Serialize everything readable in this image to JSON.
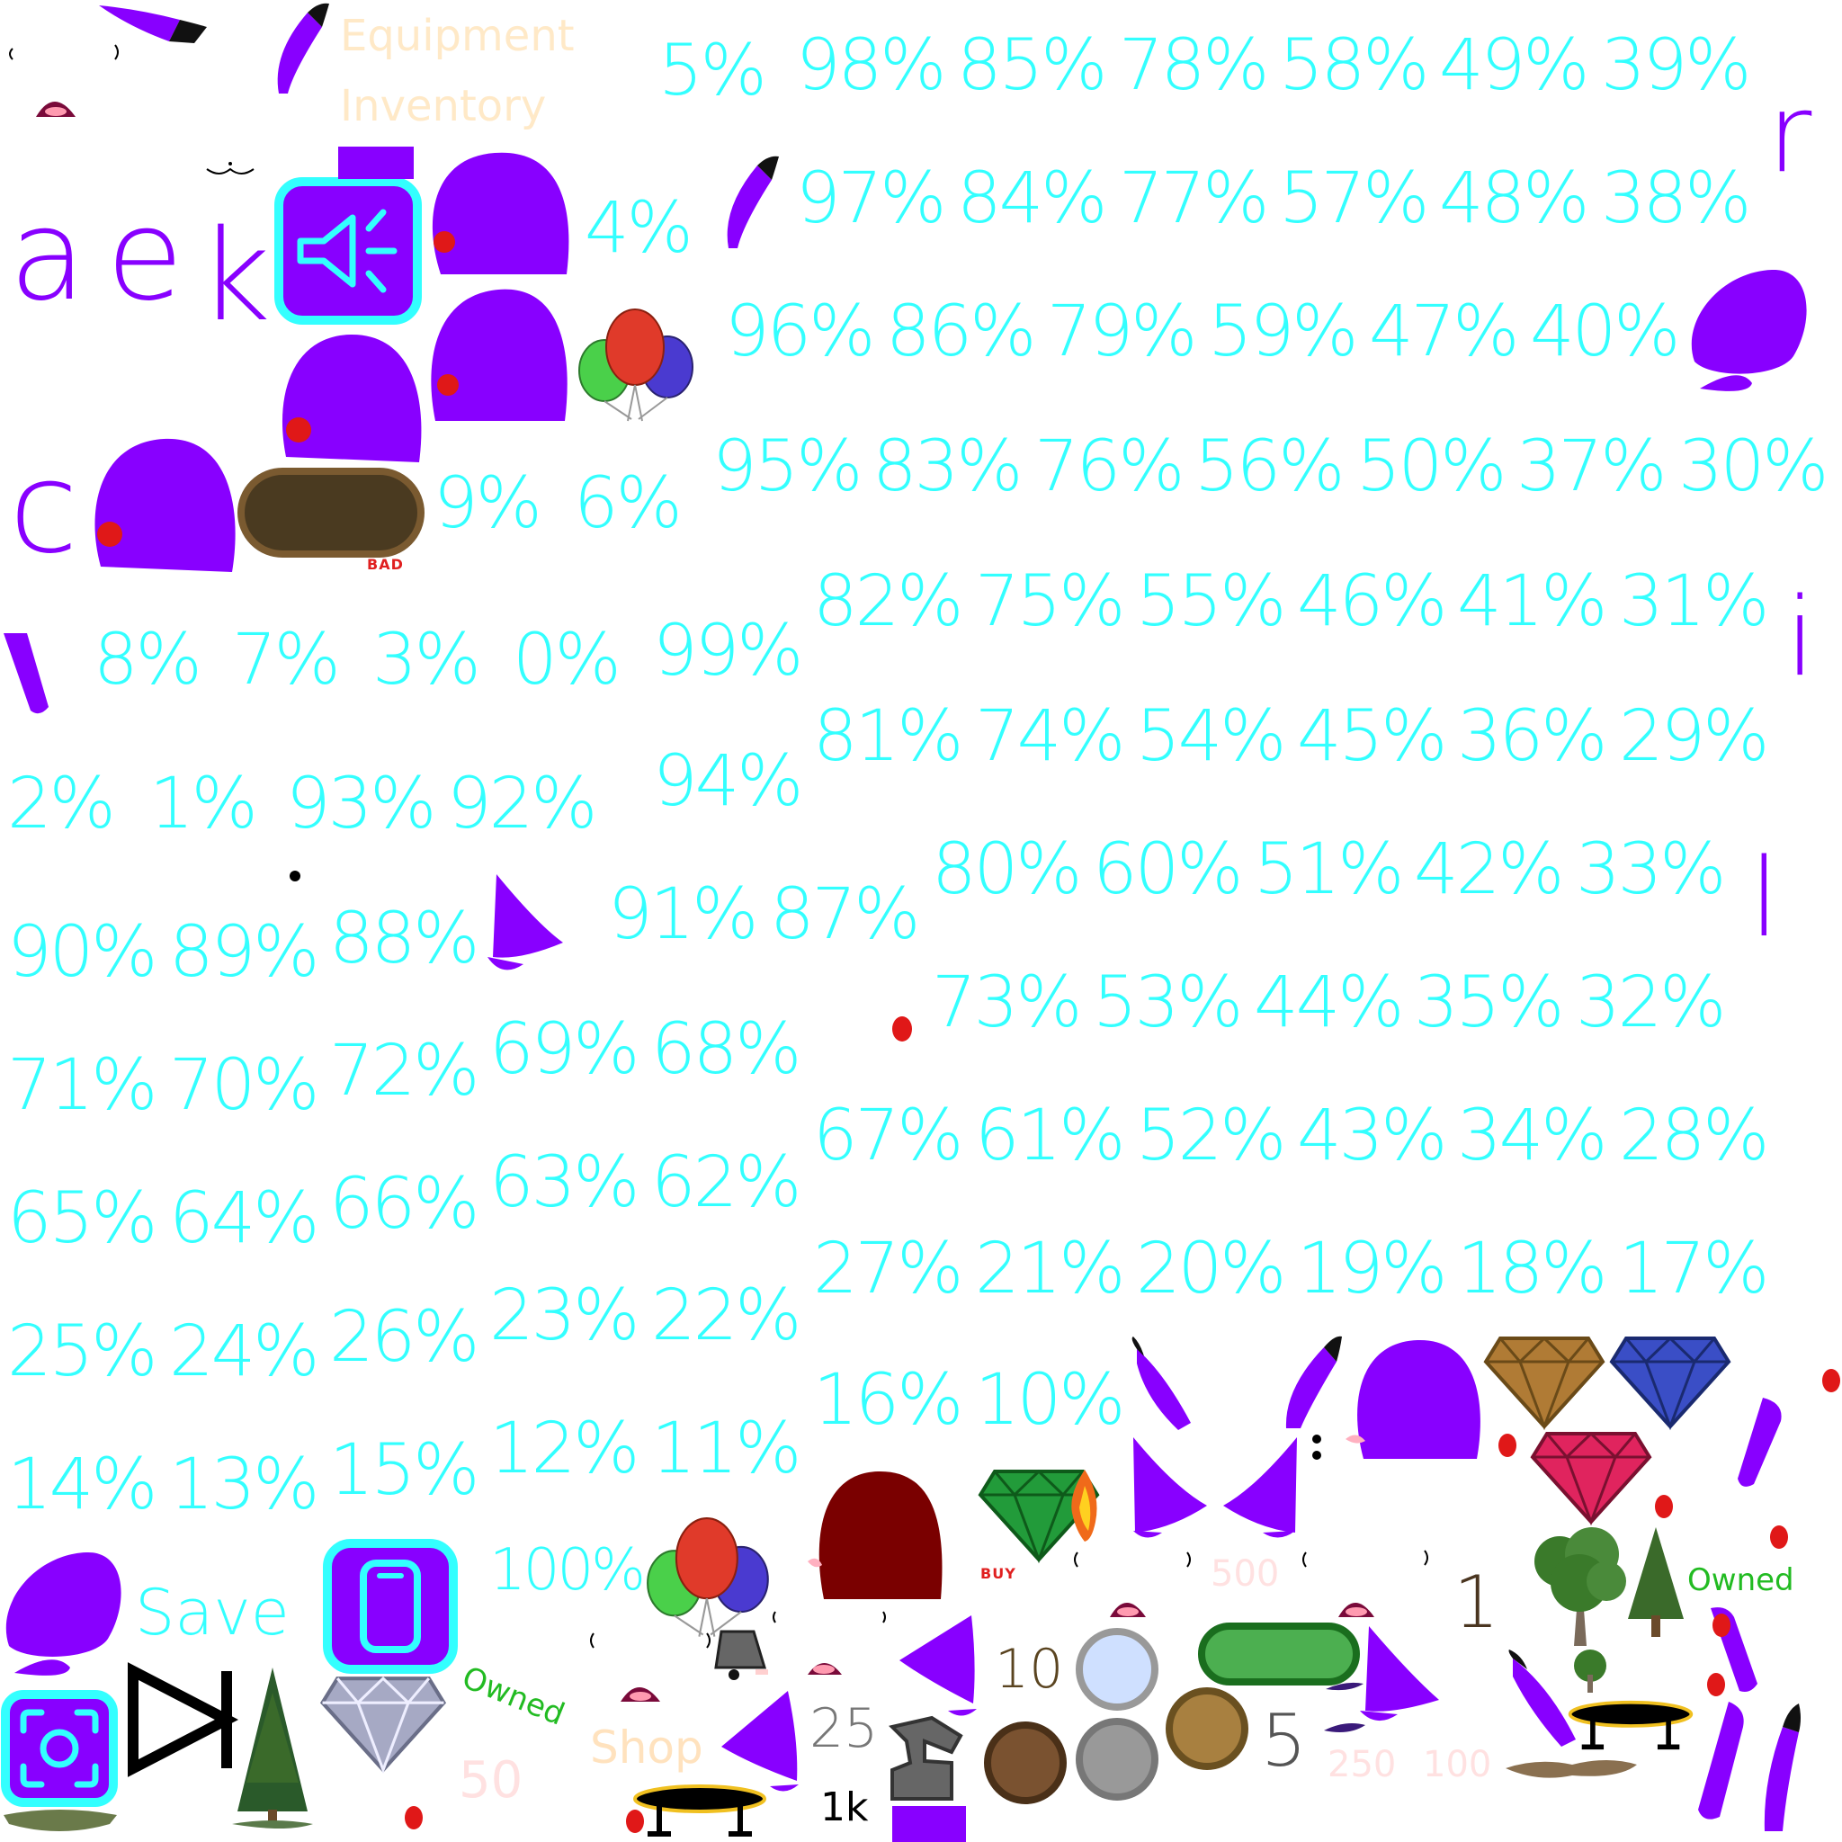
{
  "labels": {
    "equipment": "Equipment",
    "inventory": "Inventory",
    "save": "Save",
    "shop": "Shop",
    "owned_1": "Owned",
    "owned_2": "Owned",
    "bad": "BAD",
    "buy": "BUY"
  },
  "numbers": {
    "n50": "50",
    "n500": "500",
    "n250": "250",
    "n100": "100",
    "n1": "1",
    "n10": "10",
    "n25": "25",
    "n1k": "1k",
    "n5": "5"
  },
  "letters": {
    "a": "a",
    "e": "e",
    "k": "k",
    "c": "c",
    "r": "r",
    "i": "i",
    "l": "l"
  },
  "percents": {
    "p5": "5%",
    "p98": "98%",
    "p85": "85%",
    "p78": "78%",
    "p58": "58%",
    "p49": "49%",
    "p39": "39%",
    "p4": "4%",
    "p97": "97%",
    "p84": "84%",
    "p77": "77%",
    "p57": "57%",
    "p48": "48%",
    "p38": "38%",
    "p96": "96%",
    "p86": "86%",
    "p79": "79%",
    "p59": "59%",
    "p47": "47%",
    "p40": "40%",
    "p9": "9%",
    "p6": "6%",
    "p95": "95%",
    "p83": "83%",
    "p76": "76%",
    "p56": "56%",
    "p50": "50%",
    "p37": "37%",
    "p30": "30%",
    "p82": "82%",
    "p75": "75%",
    "p55": "55%",
    "p46": "46%",
    "p41": "41%",
    "p31": "31%",
    "p8": "8%",
    "p7": "7%",
    "p3": "3%",
    "p0": "0%",
    "p99": "99%",
    "p81": "81%",
    "p74": "74%",
    "p54": "54%",
    "p45": "45%",
    "p36": "36%",
    "p29": "29%",
    "p2": "2%",
    "p1": "1%",
    "p93": "93%",
    "p92": "92%",
    "p94": "94%",
    "p80": "80%",
    "p60": "60%",
    "p51": "51%",
    "p42": "42%",
    "p33": "33%",
    "p90": "90%",
    "p89": "89%",
    "p88": "88%",
    "p91": "91%",
    "p87": "87%",
    "p73": "73%",
    "p53": "53%",
    "p44": "44%",
    "p35": "35%",
    "p32": "32%",
    "p71": "71%",
    "p70": "70%",
    "p72": "72%",
    "p69": "69%",
    "p68": "68%",
    "p67": "67%",
    "p61": "61%",
    "p52": "52%",
    "p43": "43%",
    "p34": "34%",
    "p28": "28%",
    "p65": "65%",
    "p64": "64%",
    "p66": "66%",
    "p63": "63%",
    "p62": "62%",
    "p27": "27%",
    "p21": "21%",
    "p20": "20%",
    "p19": "19%",
    "p18": "18%",
    "p17": "17%",
    "p25": "25%",
    "p24": "24%",
    "p26": "26%",
    "p23": "23%",
    "p22": "22%",
    "p16": "16%",
    "p10": "10%",
    "p14": "14%",
    "p13": "13%",
    "p15": "15%",
    "p12": "12%",
    "p11": "11%",
    "p100": "100%"
  },
  "icons": {
    "sound": "speaker-icon",
    "phone": "phone-icon",
    "camera": "camera-icon",
    "bowtie": "bowtie-icon"
  },
  "colors": {
    "purple": "#8800ff",
    "cyan_text": "#33ffff",
    "button_cyan": "#00ffff",
    "diamond_gold": "#b07b35",
    "diamond_blue": "#3a4ec6",
    "diamond_red": "#e0245e",
    "diamond_green": "#229b3a",
    "diamond_white": "#a6a9c4"
  }
}
